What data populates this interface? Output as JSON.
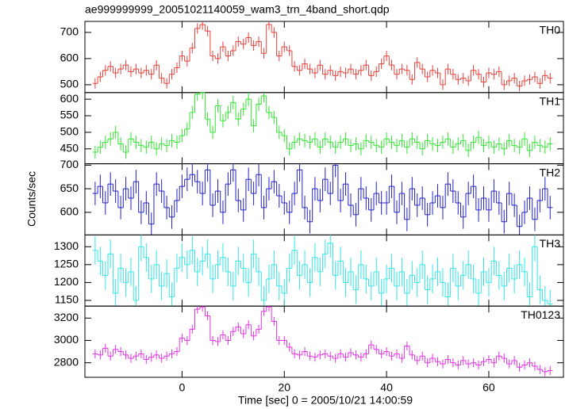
{
  "chart_data": {
    "type": "line",
    "title": "ae999999999_20051021140059_wam3_trn_4band_short.qdp",
    "x_label": "Time [sec] 0 = 2005/10/21 14:00:59",
    "y_label": "Counts/sec",
    "xlim": [
      -19,
      74.6
    ],
    "xticks": [
      0,
      20,
      40,
      60
    ],
    "x": [
      -17,
      -16,
      -15,
      -14,
      -13,
      -12,
      -11,
      -10,
      -9,
      -8,
      -7,
      -6,
      -5,
      -4,
      -3,
      -2,
      -1,
      0,
      1,
      2,
      3,
      4,
      5,
      6,
      7,
      8,
      9,
      10,
      11,
      12,
      13,
      14,
      15,
      16,
      17,
      18,
      19,
      20,
      21,
      22,
      23,
      24,
      25,
      26,
      27,
      28,
      29,
      30,
      31,
      32,
      33,
      34,
      35,
      36,
      37,
      38,
      39,
      40,
      41,
      42,
      43,
      44,
      45,
      46,
      47,
      48,
      49,
      50,
      51,
      52,
      53,
      54,
      55,
      56,
      57,
      58,
      59,
      60,
      61,
      62,
      63,
      64,
      65,
      66,
      67,
      68,
      69,
      70,
      71,
      72
    ],
    "series": [
      {
        "name": "TH0",
        "color": "#e8403a",
        "error": 20,
        "ylim": [
          470,
          742
        ],
        "yticks": [
          500,
          600,
          700
        ],
        "values": [
          505,
          530,
          555,
          570,
          545,
          560,
          575,
          550,
          560,
          545,
          555,
          540,
          575,
          525,
          505,
          540,
          565,
          610,
          590,
          640,
          715,
          730,
          705,
          610,
          600,
          645,
          610,
          630,
          665,
          655,
          680,
          650,
          665,
          620,
          730,
          700,
          610,
          645,
          630,
          570,
          555,
          580,
          560,
          545,
          575,
          540,
          555,
          535,
          550,
          545,
          560,
          540,
          555,
          575,
          535,
          550,
          580,
          610,
          575,
          540,
          560,
          555,
          520,
          585,
          560,
          530,
          555,
          545,
          500,
          560,
          540,
          520,
          525,
          515,
          555,
          540,
          510,
          545,
          540,
          550,
          500,
          515,
          525,
          495,
          515,
          520,
          530,
          505,
          535,
          525
        ]
      },
      {
        "name": "TH1",
        "color": "#33e633",
        "error": 20,
        "ylim": [
          405,
          620
        ],
        "yticks": [
          450,
          500,
          550,
          600
        ],
        "values": [
          440,
          455,
          470,
          480,
          500,
          465,
          440,
          480,
          470,
          460,
          455,
          470,
          450,
          465,
          460,
          475,
          470,
          490,
          510,
          560,
          615,
          620,
          540,
          500,
          580,
          535,
          560,
          590,
          540,
          570,
          600,
          520,
          585,
          610,
          560,
          545,
          500,
          490,
          450,
          470,
          480,
          475,
          470,
          480,
          455,
          480,
          470,
          455,
          470,
          480,
          460,
          465,
          450,
          475,
          470,
          460,
          455,
          480,
          470,
          460,
          475,
          455,
          480,
          470,
          450,
          475,
          465,
          460,
          470,
          480,
          455,
          465,
          475,
          445,
          470,
          485,
          460,
          470,
          455,
          465,
          450,
          475,
          460,
          455,
          480,
          445,
          470,
          460,
          455,
          465
        ]
      },
      {
        "name": "TH2",
        "color": "#2222cc",
        "error": 25,
        "ylim": [
          552,
          703
        ],
        "yticks": [
          600,
          650,
          700
        ],
        "values": [
          640,
          655,
          620,
          660,
          645,
          610,
          650,
          630,
          665,
          600,
          620,
          575,
          660,
          645,
          610,
          590,
          625,
          655,
          670,
          680,
          665,
          640,
          690,
          615,
          645,
          600,
          660,
          690,
          625,
          605,
          670,
          640,
          680,
          610,
          650,
          665,
          635,
          620,
          600,
          640,
          690,
          610,
          580,
          650,
          625,
          670,
          640,
          700,
          625,
          660,
          615,
          595,
          650,
          630,
          605,
          640,
          620,
          620,
          655,
          600,
          640,
          585,
          650,
          615,
          630,
          595,
          620,
          635,
          610,
          660,
          645,
          620,
          590,
          640,
          655,
          605,
          630,
          605,
          645,
          620,
          580,
          640,
          615,
          570,
          600,
          630,
          585,
          625,
          650,
          610
        ]
      },
      {
        "name": "TH3",
        "color": "#33e6e6",
        "error": 40,
        "ylim": [
          1134,
          1333
        ],
        "yticks": [
          1150,
          1200,
          1250,
          1300
        ],
        "values": [
          1290,
          1260,
          1220,
          1280,
          1170,
          1240,
          1200,
          1230,
          1150,
          1300,
          1270,
          1210,
          1250,
          1190,
          1225,
          1160,
          1240,
          1270,
          1250,
          1290,
          1230,
          1260,
          1280,
          1210,
          1250,
          1270,
          1230,
          1190,
          1260,
          1240,
          1200,
          1280,
          1230,
          1150,
          1210,
          1250,
          1190,
          1170,
          1240,
          1290,
          1220,
          1250,
          1200,
          1270,
          1230,
          1280,
          1310,
          1220,
          1260,
          1200,
          1230,
          1180,
          1250,
          1210,
          1190,
          1230,
          1170,
          1210,
          1240,
          1190,
          1230,
          1170,
          1220,
          1200,
          1250,
          1180,
          1210,
          1230,
          1200,
          1160,
          1240,
          1190,
          1220,
          1250,
          1210,
          1170,
          1230,
          1200,
          1260,
          1220,
          1190,
          1240,
          1210,
          1250,
          1230,
          1160,
          1300,
          1180,
          1150,
          1140
        ]
      },
      {
        "name": "TH0123",
        "color": "#e633e6",
        "error": 40,
        "ylim": [
          2670,
          3307
        ],
        "yticks": [
          2800,
          3000,
          3200
        ],
        "values": [
          2880,
          2870,
          2930,
          2860,
          2920,
          2900,
          2870,
          2840,
          2860,
          2880,
          2830,
          2850,
          2870,
          2840,
          2860,
          2880,
          2900,
          3020,
          3000,
          3100,
          3280,
          3300,
          3220,
          3000,
          2990,
          3050,
          3000,
          3080,
          3120,
          3060,
          3140,
          3040,
          3100,
          3260,
          3300,
          3170,
          3000,
          3000,
          2940,
          2880,
          2870,
          2900,
          2860,
          2850,
          2870,
          2880,
          2860,
          2840,
          2880,
          2850,
          2890,
          2870,
          2850,
          2880,
          2960,
          2920,
          2880,
          2900,
          2860,
          2880,
          2840,
          2950,
          2870,
          2820,
          2860,
          2800,
          2840,
          2810,
          2790,
          2830,
          2800,
          2780,
          2820,
          2790,
          2800,
          2780,
          2810,
          2830,
          2800,
          2860,
          2840,
          2790,
          2820,
          2760,
          2780,
          2800,
          2770,
          2740,
          2720,
          2730
        ]
      }
    ]
  }
}
